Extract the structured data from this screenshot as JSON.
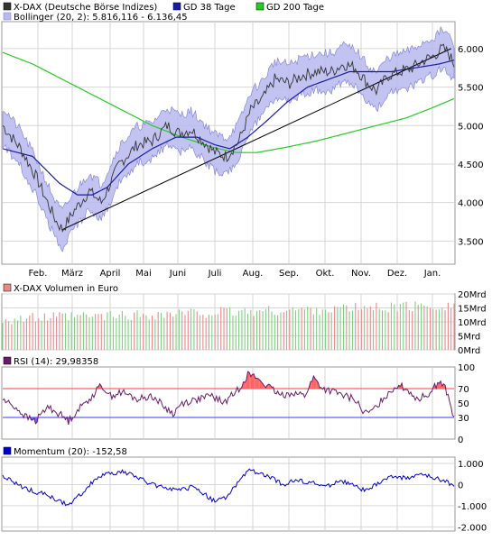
{
  "colors": {
    "price": "#333333",
    "bollinger_fill": "#b9b9f0",
    "bollinger_edge": "#7b7bd6",
    "gd38": "#1a1aa8",
    "gd200": "#22cc22",
    "trend": "#000000",
    "vol_down": "#e88a8a",
    "vol_up": "#7fd07f",
    "rsi": "#6b1a6b",
    "rsi_over": "#ff6464",
    "rsi_under": "#6464ff",
    "momentum": "#0000cc",
    "grid": "#d6d6d6",
    "hline_red": "#ff3a3a",
    "hline_blue": "#3a3aff"
  },
  "legend": {
    "price_label": "X-DAX (Deutsche Börse Indizes)",
    "gd38_label": "GD 38 Tage",
    "gd200_label": "GD 200 Tage",
    "bollinger_label": "Bollinger (20, 2): 5.816,116 - 6.136,45",
    "volume_label": "X-DAX Volumen in Euro",
    "rsi_label": "RSI (14): 29,98358",
    "momentum_label": "Momentum (20): -152,58"
  },
  "chart_data": [
    {
      "type": "line",
      "panel": "price",
      "title": "X-DAX (Deutsche Börse Indizes)",
      "months": [
        "Feb.",
        "März",
        "April",
        "Mai",
        "Juni",
        "Juli",
        "Aug.",
        "Sep.",
        "Okt.",
        "Nov.",
        "Dez.",
        "Jan."
      ],
      "ylim": [
        3200,
        6350
      ],
      "yticks": [
        "6.000",
        "5.500",
        "5.000",
        "4.500",
        "4.000",
        "3.500"
      ],
      "ytick_values": [
        6000,
        5500,
        5000,
        4500,
        4000,
        3500
      ],
      "grid": true,
      "price_keypoints": [
        [
          0,
          5000
        ],
        [
          12,
          4700
        ],
        [
          22,
          4350
        ],
        [
          30,
          4000
        ],
        [
          36,
          3750
        ],
        [
          40,
          3650
        ],
        [
          48,
          3900
        ],
        [
          58,
          4150
        ],
        [
          66,
          4000
        ],
        [
          78,
          4500
        ],
        [
          90,
          4750
        ],
        [
          100,
          4800
        ],
        [
          110,
          5000
        ],
        [
          118,
          4900
        ],
        [
          126,
          4950
        ],
        [
          134,
          4800
        ],
        [
          142,
          4650
        ],
        [
          150,
          4600
        ],
        [
          158,
          4800
        ],
        [
          166,
          5200
        ],
        [
          174,
          5350
        ],
        [
          182,
          5600
        ],
        [
          192,
          5550
        ],
        [
          200,
          5650
        ],
        [
          210,
          5700
        ],
        [
          220,
          5700
        ],
        [
          228,
          5800
        ],
        [
          236,
          5750
        ],
        [
          244,
          5550
        ],
        [
          250,
          5450
        ],
        [
          258,
          5650
        ],
        [
          266,
          5700
        ],
        [
          274,
          5750
        ],
        [
          282,
          5850
        ],
        [
          288,
          5900
        ],
        [
          294,
          6000
        ],
        [
          298,
          5950
        ],
        [
          302,
          5800
        ]
      ],
      "series": [
        {
          "name": "GD 38 Tage",
          "keypoints": [
            [
              0,
              4700
            ],
            [
              20,
              4600
            ],
            [
              38,
              4250
            ],
            [
              50,
              4100
            ],
            [
              60,
              4100
            ],
            [
              70,
              4200
            ],
            [
              84,
              4500
            ],
            [
              100,
              4700
            ],
            [
              116,
              4850
            ],
            [
              130,
              4850
            ],
            [
              142,
              4750
            ],
            [
              152,
              4700
            ],
            [
              164,
              4850
            ],
            [
              176,
              5050
            ],
            [
              190,
              5300
            ],
            [
              204,
              5500
            ],
            [
              218,
              5600
            ],
            [
              232,
              5700
            ],
            [
              246,
              5700
            ],
            [
              260,
              5700
            ],
            [
              276,
              5750
            ],
            [
              292,
              5800
            ],
            [
              302,
              5850
            ]
          ]
        },
        {
          "name": "GD 200 Tage",
          "keypoints": [
            [
              0,
              5950
            ],
            [
              20,
              5800
            ],
            [
              40,
              5600
            ],
            [
              60,
              5400
            ],
            [
              80,
              5200
            ],
            [
              100,
              5000
            ],
            [
              120,
              4850
            ],
            [
              140,
              4720
            ],
            [
              156,
              4650
            ],
            [
              170,
              4650
            ],
            [
              190,
              4720
            ],
            [
              210,
              4800
            ],
            [
              230,
              4900
            ],
            [
              250,
              5000
            ],
            [
              270,
              5100
            ],
            [
              286,
              5220
            ],
            [
              302,
              5350
            ]
          ]
        }
      ],
      "bollinger_half_width": 250,
      "trendline": [
        [
          40,
          3650
        ],
        [
          300,
          6000
        ]
      ]
    },
    {
      "type": "bar",
      "panel": "volume",
      "title": "X-DAX Volumen in Euro",
      "ylim": [
        0,
        20
      ],
      "yticks": [
        "20Mrd",
        "15Mrd",
        "10Mrd",
        "5Mrd",
        "0Mrd"
      ],
      "ytick_values": [
        20,
        15,
        10,
        5,
        0
      ]
    },
    {
      "type": "line",
      "panel": "rsi",
      "title": "RSI (14): 29,98358",
      "ylim": [
        0,
        100
      ],
      "yticks": [
        "100",
        "70",
        "50",
        "30",
        "0"
      ],
      "ytick_values": [
        100,
        70,
        50,
        30,
        0
      ],
      "upper": 70,
      "lower": 30,
      "keypoints": [
        [
          0,
          55
        ],
        [
          8,
          45
        ],
        [
          16,
          30
        ],
        [
          22,
          25
        ],
        [
          30,
          45
        ],
        [
          38,
          35
        ],
        [
          44,
          25
        ],
        [
          50,
          40
        ],
        [
          60,
          60
        ],
        [
          66,
          75
        ],
        [
          72,
          60
        ],
        [
          80,
          65
        ],
        [
          90,
          55
        ],
        [
          100,
          60
        ],
        [
          108,
          45
        ],
        [
          114,
          35
        ],
        [
          120,
          50
        ],
        [
          130,
          55
        ],
        [
          140,
          60
        ],
        [
          148,
          50
        ],
        [
          158,
          70
        ],
        [
          164,
          90
        ],
        [
          170,
          85
        ],
        [
          176,
          75
        ],
        [
          186,
          60
        ],
        [
          194,
          65
        ],
        [
          202,
          60
        ],
        [
          208,
          85
        ],
        [
          214,
          70
        ],
        [
          222,
          65
        ],
        [
          228,
          60
        ],
        [
          236,
          55
        ],
        [
          242,
          35
        ],
        [
          248,
          40
        ],
        [
          256,
          60
        ],
        [
          264,
          75
        ],
        [
          270,
          70
        ],
        [
          278,
          55
        ],
        [
          286,
          65
        ],
        [
          292,
          80
        ],
        [
          296,
          72
        ],
        [
          302,
          30
        ]
      ]
    },
    {
      "type": "line",
      "panel": "momentum",
      "title": "Momentum (20): -152,58",
      "ylim": [
        -2200,
        1300
      ],
      "yticks": [
        "1.000",
        "0",
        "-1.000",
        "-2.000"
      ],
      "ytick_values": [
        1000,
        0,
        -1000,
        -2000
      ],
      "keypoints": [
        [
          0,
          400
        ],
        [
          10,
          0
        ],
        [
          20,
          -300
        ],
        [
          30,
          -500
        ],
        [
          38,
          -800
        ],
        [
          44,
          -1000
        ],
        [
          50,
          -600
        ],
        [
          56,
          -200
        ],
        [
          62,
          300
        ],
        [
          70,
          500
        ],
        [
          80,
          600
        ],
        [
          92,
          300
        ],
        [
          100,
          0
        ],
        [
          108,
          -100
        ],
        [
          118,
          -300
        ],
        [
          128,
          -100
        ],
        [
          136,
          -500
        ],
        [
          142,
          -800
        ],
        [
          150,
          -600
        ],
        [
          158,
          200
        ],
        [
          166,
          700
        ],
        [
          172,
          500
        ],
        [
          180,
          300
        ],
        [
          188,
          0
        ],
        [
          196,
          200
        ],
        [
          206,
          100
        ],
        [
          216,
          -100
        ],
        [
          226,
          200
        ],
        [
          236,
          -100
        ],
        [
          244,
          -300
        ],
        [
          254,
          200
        ],
        [
          262,
          400
        ],
        [
          270,
          300
        ],
        [
          280,
          500
        ],
        [
          288,
          300
        ],
        [
          296,
          200
        ],
        [
          302,
          -150
        ]
      ]
    }
  ]
}
